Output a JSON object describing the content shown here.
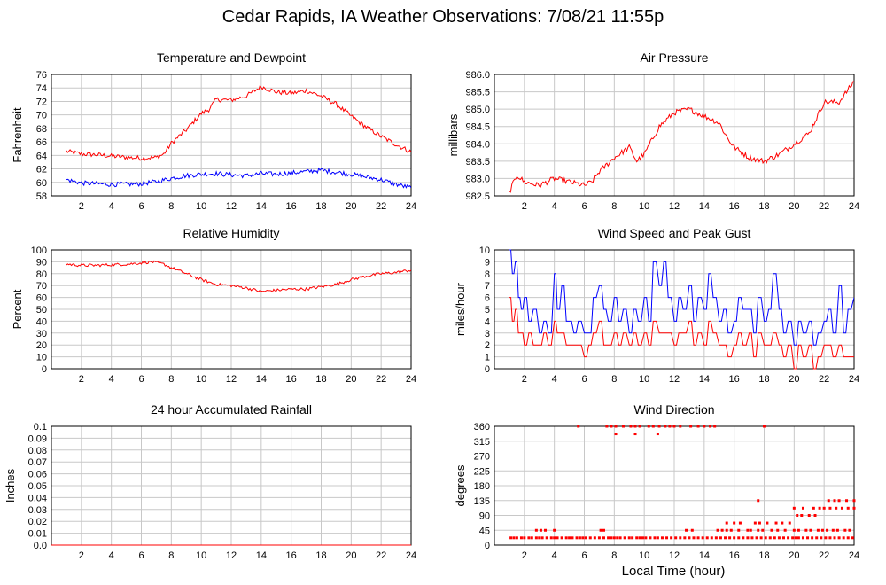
{
  "title": "Cedar Rapids, IA Weather Observations: 7/08/21 11:55p",
  "x_axis_label": "Local Time (hour)",
  "colors": {
    "red": "#ff0000",
    "blue": "#0000ff",
    "grid": "#c8c8c8"
  },
  "chart_data": [
    {
      "id": "temp",
      "type": "line",
      "title": "Temperature and Dewpoint",
      "ylabel": "Fahrenheit",
      "xlim": [
        0,
        24
      ],
      "ylim": [
        58,
        76
      ],
      "xticks": [
        2,
        4,
        6,
        8,
        10,
        12,
        14,
        16,
        18,
        20,
        22,
        24
      ],
      "yticks": [
        58,
        60,
        62,
        64,
        66,
        68,
        70,
        72,
        74,
        76
      ],
      "ytick_labels": [
        "58",
        "60",
        "62",
        "64",
        "66",
        "68",
        "70",
        "72",
        "74",
        "76"
      ],
      "grid": true,
      "series": [
        {
          "color": "red",
          "jitter": 0.35,
          "x": [
            1,
            2,
            3,
            4,
            5,
            6,
            7,
            7.5,
            8,
            9,
            10,
            10.5,
            11,
            12,
            13,
            14,
            15,
            16,
            17,
            18,
            19,
            20,
            21,
            22,
            23,
            24
          ],
          "y": [
            64.6,
            64.2,
            64.1,
            63.9,
            63.7,
            63.6,
            63.7,
            64.2,
            65.8,
            67.8,
            70.2,
            70.8,
            72.3,
            72.2,
            72.8,
            74.2,
            73.4,
            73.2,
            73.6,
            72.8,
            71.6,
            69.8,
            68.2,
            66.8,
            65.6,
            64.5
          ]
        },
        {
          "color": "blue",
          "jitter": 0.35,
          "x": [
            1,
            2,
            3,
            4,
            5,
            6,
            7,
            8,
            9,
            10,
            11,
            12,
            13,
            14,
            15,
            16,
            17,
            18,
            19,
            20,
            21,
            22,
            23,
            24
          ],
          "y": [
            60.4,
            59.9,
            59.8,
            59.7,
            59.7,
            59.8,
            60.1,
            60.6,
            61.0,
            61.2,
            61.3,
            61.1,
            61.0,
            61.3,
            61.2,
            61.4,
            61.6,
            61.8,
            61.5,
            61.2,
            60.8,
            60.4,
            59.7,
            59.2
          ]
        }
      ]
    },
    {
      "id": "pressure",
      "type": "line",
      "title": "Air Pressure",
      "ylabel": "millibars",
      "xlim": [
        0,
        24
      ],
      "ylim": [
        982.5,
        986
      ],
      "xticks": [
        2,
        4,
        6,
        8,
        10,
        12,
        14,
        16,
        18,
        20,
        22,
        24
      ],
      "yticks": [
        982.5,
        983,
        983.5,
        984,
        984.5,
        985,
        985.5,
        986
      ],
      "ytick_labels": [
        "982.5",
        "983.0",
        "983.5",
        "984.0",
        "984.5",
        "985.0",
        "985.5",
        "986.0"
      ],
      "grid": true,
      "series": [
        {
          "color": "red",
          "jitter": 0.08,
          "x": [
            1,
            1.5,
            2,
            3,
            4,
            5,
            6,
            6.5,
            7,
            7.5,
            8,
            9,
            9.5,
            10,
            11,
            12,
            13,
            14,
            15,
            15.5,
            16,
            17,
            18,
            19,
            20,
            21,
            22,
            23,
            24
          ],
          "y": [
            982.6,
            983.1,
            982.9,
            982.8,
            983.0,
            982.9,
            982.8,
            982.9,
            983.2,
            983.4,
            983.6,
            983.9,
            983.5,
            983.7,
            984.5,
            984.9,
            985.0,
            984.8,
            984.6,
            984.2,
            983.9,
            983.6,
            983.5,
            983.7,
            984.0,
            984.3,
            985.2,
            985.2,
            985.8
          ]
        }
      ]
    },
    {
      "id": "humidity",
      "type": "line",
      "title": "Relative Humidity",
      "ylabel": "Percent",
      "xlim": [
        0,
        24
      ],
      "ylim": [
        0,
        100
      ],
      "xticks": [
        2,
        4,
        6,
        8,
        10,
        12,
        14,
        16,
        18,
        20,
        22,
        24
      ],
      "yticks": [
        0,
        10,
        20,
        30,
        40,
        50,
        60,
        70,
        80,
        90,
        100
      ],
      "ytick_labels": [
        "0",
        "10",
        "20",
        "30",
        "40",
        "50",
        "60",
        "70",
        "80",
        "90",
        "100"
      ],
      "grid": true,
      "series": [
        {
          "color": "red",
          "jitter": 1.2,
          "x": [
            1,
            2,
            3,
            4,
            5,
            6,
            6.7,
            7.5,
            8,
            9,
            10,
            11,
            12,
            13,
            14,
            15,
            16,
            17,
            18,
            19,
            20,
            21,
            22,
            23,
            24
          ],
          "y": [
            88,
            87,
            87,
            87.5,
            88,
            89,
            90,
            88,
            85,
            80,
            75,
            71,
            70,
            68,
            65,
            66,
            67,
            67,
            69,
            71,
            75,
            78,
            80,
            81,
            83
          ]
        }
      ]
    },
    {
      "id": "wind",
      "type": "line",
      "title": "Wind Speed and Peak Gust",
      "ylabel": "miles/hour",
      "xlim": [
        0,
        24
      ],
      "ylim": [
        0,
        10
      ],
      "xticks": [
        2,
        4,
        6,
        8,
        10,
        12,
        14,
        16,
        18,
        20,
        22,
        24
      ],
      "yticks": [
        0,
        1,
        2,
        3,
        4,
        5,
        6,
        7,
        8,
        9,
        10
      ],
      "ytick_labels": [
        "0",
        "1",
        "2",
        "3",
        "4",
        "5",
        "6",
        "7",
        "8",
        "9",
        "10"
      ],
      "grid": true,
      "series": [
        {
          "color": "blue",
          "step": true,
          "x": [
            1,
            1.2,
            1.4,
            1.6,
            1.8,
            2,
            2.3,
            2.6,
            3,
            3.3,
            3.6,
            4,
            4.2,
            4.5,
            4.8,
            5,
            5.3,
            5.6,
            6,
            6.3,
            6.6,
            7,
            7.3,
            7.6,
            8,
            8.3,
            8.6,
            9,
            9.3,
            9.6,
            10,
            10.3,
            10.6,
            11,
            11.3,
            11.6,
            12,
            12.3,
            12.6,
            13,
            13.3,
            13.6,
            14,
            14.3,
            14.6,
            15,
            15.3,
            15.6,
            16,
            16.3,
            16.6,
            17,
            17.3,
            17.6,
            18,
            18.3,
            18.6,
            19,
            19.3,
            19.6,
            20,
            20.3,
            20.6,
            21,
            21.3,
            21.6,
            22,
            22.3,
            22.6,
            23,
            23.3,
            23.6,
            24
          ],
          "y": [
            10,
            8,
            9,
            6,
            5,
            6,
            4,
            5,
            3,
            4,
            3,
            8,
            5,
            7,
            4,
            4,
            3,
            4,
            3,
            3,
            6,
            7,
            5,
            4,
            6,
            4,
            5,
            3,
            5,
            4,
            6,
            4,
            9,
            7,
            9,
            6,
            4,
            6,
            5,
            7,
            4,
            6,
            5,
            8,
            6,
            4,
            5,
            3,
            4,
            6,
            5,
            5,
            3,
            6,
            4,
            5,
            8,
            5,
            3,
            4,
            2,
            4,
            3,
            4,
            2,
            3,
            4,
            5,
            3,
            7,
            3,
            5,
            6
          ]
        },
        {
          "color": "red",
          "step": true,
          "x": [
            1,
            1.2,
            1.4,
            1.6,
            1.8,
            2,
            2.3,
            2.6,
            3,
            3.3,
            3.6,
            4,
            4.2,
            4.5,
            4.8,
            5,
            5.3,
            5.6,
            6,
            6.3,
            6.6,
            7,
            7.3,
            7.6,
            8,
            8.3,
            8.6,
            9,
            9.3,
            9.6,
            10,
            10.3,
            10.6,
            11,
            11.3,
            11.6,
            12,
            12.3,
            12.6,
            13,
            13.3,
            13.6,
            14,
            14.3,
            14.6,
            15,
            15.3,
            15.6,
            16,
            16.3,
            16.6,
            17,
            17.3,
            17.6,
            18,
            18.3,
            18.6,
            19,
            19.3,
            19.6,
            20,
            20.3,
            20.6,
            21,
            21.3,
            21.6,
            22,
            22.3,
            22.6,
            23,
            23.3,
            23.6,
            24
          ],
          "y": [
            6,
            4,
            5,
            3,
            3,
            2,
            3,
            2,
            2,
            3,
            2,
            4,
            3,
            3,
            2,
            2,
            2,
            2,
            1,
            2,
            3,
            4,
            2,
            2,
            3,
            2,
            3,
            2,
            3,
            2,
            3,
            2,
            4,
            3,
            3,
            3,
            2,
            3,
            3,
            4,
            2,
            3,
            2,
            4,
            3,
            2,
            2,
            1,
            2,
            3,
            2,
            3,
            1,
            3,
            2,
            2,
            3,
            2,
            1,
            2,
            0,
            2,
            1,
            2,
            0,
            1,
            2,
            2,
            1,
            2,
            1,
            1,
            1
          ]
        }
      ]
    },
    {
      "id": "rain",
      "type": "line",
      "title": "24 hour Accumulated Rainfall",
      "ylabel": "Inches",
      "xlim": [
        0,
        24
      ],
      "ylim": [
        0,
        0.1
      ],
      "xticks": [
        2,
        4,
        6,
        8,
        10,
        12,
        14,
        16,
        18,
        20,
        22,
        24
      ],
      "yticks": [
        0,
        0.01,
        0.02,
        0.03,
        0.04,
        0.05,
        0.06,
        0.07,
        0.08,
        0.09,
        0.1
      ],
      "ytick_labels": [
        "0.0",
        "0.01",
        "0.02",
        "0.03",
        "0.04",
        "0.05",
        "0.06",
        "0.07",
        "0.08",
        "0.09",
        "0.1"
      ],
      "grid": true,
      "series": [
        {
          "color": "red",
          "x": [
            0,
            24
          ],
          "y": [
            0,
            0
          ]
        }
      ]
    },
    {
      "id": "direction",
      "type": "scatter",
      "title": "Wind Direction",
      "ylabel": "degrees",
      "xlim": [
        0,
        24
      ],
      "ylim": [
        0,
        360
      ],
      "xticks": [
        2,
        4,
        6,
        8,
        10,
        12,
        14,
        16,
        18,
        20,
        22,
        24
      ],
      "yticks": [
        0,
        45,
        90,
        135,
        180,
        225,
        270,
        315,
        360
      ],
      "ytick_labels": [
        "0",
        "45",
        "90",
        "135",
        "180",
        "225",
        "270",
        "315",
        "360"
      ],
      "grid": true,
      "series": [
        {
          "color": "red",
          "x": [
            1.1,
            1.3,
            1.5,
            1.8,
            2.0,
            2.3,
            2.5,
            2.8,
            3.0,
            3.2,
            3.5,
            3.8,
            4.0,
            4.2,
            4.5,
            4.8,
            5.0,
            5.2,
            5.5,
            5.7,
            5.9,
            6.1,
            6.4,
            6.7,
            7.0,
            7.3,
            7.6,
            7.8,
            8.0,
            8.2,
            8.4,
            8.7,
            9.0,
            9.2,
            9.5,
            9.7,
            9.9,
            10.1,
            10.4,
            10.7,
            10.9,
            11.2,
            11.5,
            11.8,
            12.1,
            12.4,
            12.7,
            13.0,
            13.3,
            13.6,
            13.9,
            14.2,
            14.5,
            14.8,
            15.1,
            15.4,
            15.7,
            16.0,
            16.3,
            16.6,
            16.9,
            17.2,
            17.5,
            17.8,
            18.1,
            18.4,
            18.7,
            19.0,
            19.3,
            19.6,
            19.9,
            20.1,
            20.3,
            20.6,
            20.9,
            21.2,
            21.5,
            21.8,
            22.1,
            22.4,
            22.7,
            23.0,
            23.3,
            23.6,
            23.9,
            5.6,
            7.5,
            7.8,
            8.1,
            8.6,
            9.1,
            9.4,
            9.7,
            10.3,
            10.6,
            11.0,
            11.4,
            11.7,
            12.0,
            12.4,
            13.1,
            13.6,
            14.0,
            14.4,
            14.7,
            18.0,
            8.1,
            9.4,
            10.9,
            4.0,
            2.8,
            3.1,
            3.4,
            7.1,
            7.3,
            12.8,
            13.2,
            14.9,
            15.2,
            15.5,
            15.8,
            16.3,
            16.9,
            17.1,
            17.6,
            17.9,
            18.5,
            18.9,
            19.4,
            20.0,
            20.3,
            20.8,
            21.1,
            21.6,
            21.9,
            22.2,
            22.6,
            22.9,
            23.4,
            23.7,
            15.5,
            16.0,
            16.4,
            17.4,
            17.7,
            18.2,
            18.8,
            19.2,
            19.7,
            20.2,
            20.5,
            21.0,
            21.4,
            20.0,
            20.6,
            21.3,
            21.7,
            22.0,
            22.4,
            22.8,
            23.2,
            23.6,
            24.0,
            22.3,
            22.7,
            23.0,
            23.5,
            24.0,
            17.6
          ],
          "y": [
            22,
            22,
            22,
            22,
            22,
            22,
            22,
            22,
            22,
            22,
            22,
            22,
            22,
            22,
            22,
            22,
            22,
            22,
            22,
            22,
            22,
            22,
            22,
            22,
            22,
            22,
            22,
            22,
            22,
            22,
            22,
            22,
            22,
            22,
            22,
            22,
            22,
            22,
            22,
            22,
            22,
            22,
            22,
            22,
            22,
            22,
            22,
            22,
            22,
            22,
            22,
            22,
            22,
            22,
            22,
            22,
            22,
            22,
            22,
            22,
            22,
            22,
            22,
            22,
            22,
            22,
            22,
            22,
            22,
            22,
            22,
            22,
            22,
            22,
            22,
            22,
            22,
            22,
            22,
            22,
            22,
            22,
            22,
            22,
            22,
            360,
            360,
            360,
            360,
            360,
            360,
            360,
            360,
            360,
            360,
            360,
            360,
            360,
            360,
            360,
            360,
            360,
            360,
            360,
            360,
            360,
            337,
            337,
            337,
            45,
            45,
            45,
            45,
            45,
            45,
            45,
            45,
            45,
            45,
            45,
            45,
            45,
            45,
            45,
            45,
            45,
            45,
            45,
            45,
            45,
            45,
            45,
            45,
            45,
            45,
            45,
            45,
            45,
            45,
            45,
            67,
            67,
            67,
            67,
            67,
            67,
            67,
            67,
            67,
            90,
            90,
            90,
            90,
            112,
            112,
            112,
            112,
            112,
            112,
            112,
            112,
            112,
            112,
            135,
            135,
            135,
            135,
            135,
            135
          ]
        }
      ]
    }
  ]
}
